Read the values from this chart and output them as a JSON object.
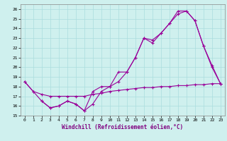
{
  "xlabel": "Windchill (Refroidissement éolien,°C)",
  "background_color": "#cff0ee",
  "grid_color": "#aadddd",
  "line_color": "#990099",
  "xlim": [
    -0.5,
    23.5
  ],
  "ylim": [
    15,
    26.5
  ],
  "yticks": [
    15,
    16,
    17,
    18,
    19,
    20,
    21,
    22,
    23,
    24,
    25,
    26
  ],
  "xticks": [
    0,
    1,
    2,
    3,
    4,
    5,
    6,
    7,
    8,
    9,
    10,
    11,
    12,
    13,
    14,
    15,
    16,
    17,
    18,
    19,
    20,
    21,
    22,
    23
  ],
  "series": [
    {
      "x": [
        0,
        1,
        2,
        3,
        4,
        5,
        6,
        7,
        8,
        9,
        10,
        11,
        12,
        13,
        14,
        15,
        16,
        17,
        18,
        19,
        20,
        21,
        22,
        23
      ],
      "y": [
        18.5,
        17.5,
        16.5,
        15.8,
        16.0,
        16.5,
        16.2,
        15.5,
        17.5,
        18.0,
        18.0,
        19.5,
        19.5,
        21.0,
        23.0,
        22.5,
        23.5,
        24.5,
        25.5,
        25.8,
        24.8,
        22.2,
        20.2,
        18.3
      ]
    },
    {
      "x": [
        0,
        1,
        2,
        3,
        4,
        5,
        6,
        7,
        8,
        9,
        10,
        11,
        12,
        13,
        14,
        15,
        16,
        17,
        18,
        19,
        20,
        21,
        22,
        23
      ],
      "y": [
        18.5,
        17.5,
        17.2,
        17.0,
        17.0,
        17.0,
        17.0,
        17.0,
        17.2,
        17.3,
        17.5,
        17.6,
        17.7,
        17.8,
        17.9,
        17.9,
        18.0,
        18.0,
        18.1,
        18.1,
        18.2,
        18.2,
        18.3,
        18.3
      ]
    },
    {
      "x": [
        2,
        3,
        4,
        5,
        6,
        7,
        8,
        9,
        10,
        11,
        12,
        13,
        14,
        15,
        16,
        17,
        18,
        19,
        20,
        21,
        22,
        23
      ],
      "y": [
        16.5,
        15.8,
        16.0,
        16.5,
        16.2,
        15.5,
        16.2,
        17.5,
        18.0,
        18.5,
        19.5,
        21.0,
        23.0,
        22.8,
        23.5,
        24.5,
        25.8,
        25.8,
        24.8,
        22.2,
        20.0,
        18.3
      ]
    }
  ]
}
